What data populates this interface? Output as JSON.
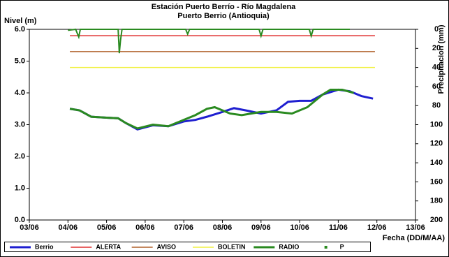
{
  "chart_data": {
    "type": "line",
    "title": "Estación Puerto Berrío - Río Magdalena",
    "subtitle": "Puerto Berrio (Antioquia)",
    "y_label": "Nivel (m)",
    "y2_label": "Precipitacion (mm)",
    "x_label": "Fecha (DD/M/AA)",
    "xlim": [
      3,
      13
    ],
    "xticks": [
      {
        "value": 3,
        "label": "03/06"
      },
      {
        "value": 4,
        "label": "04/06"
      },
      {
        "value": 5,
        "label": "05/06"
      },
      {
        "value": 6,
        "label": "06/06"
      },
      {
        "value": 7,
        "label": "07/06"
      },
      {
        "value": 8,
        "label": "08/06"
      },
      {
        "value": 9,
        "label": "09/06"
      },
      {
        "value": 10,
        "label": "10/06"
      },
      {
        "value": 11,
        "label": "11/06"
      },
      {
        "value": 12,
        "label": "12/06"
      },
      {
        "value": 13,
        "label": "13/06"
      }
    ],
    "ylim": [
      0,
      6
    ],
    "yticks": [
      {
        "value": 0,
        "label": "0.0"
      },
      {
        "value": 1,
        "label": "1.0"
      },
      {
        "value": 2,
        "label": "2.0"
      },
      {
        "value": 3,
        "label": "3.0"
      },
      {
        "value": 4,
        "label": "4.0"
      },
      {
        "value": 5,
        "label": "5.0"
      },
      {
        "value": 6,
        "label": "6.0"
      }
    ],
    "y2lim": [
      0,
      200
    ],
    "y2_inverted": true,
    "y2ticks": [
      0,
      20,
      40,
      60,
      80,
      100,
      120,
      140,
      160,
      180,
      200
    ],
    "legend": "bottom",
    "series": [
      {
        "name": "Berrio",
        "color": "#1f1fd0",
        "width": 3,
        "x": [
          4.05,
          4.3,
          4.6,
          5.0,
          5.3,
          5.5,
          5.8,
          6.2,
          6.6,
          7.0,
          7.3,
          7.6,
          8.0,
          8.3,
          8.6,
          9.0,
          9.4,
          9.7,
          10.0,
          10.3,
          10.6,
          11.0,
          11.3,
          11.6,
          11.9
        ],
        "values": [
          3.5,
          3.45,
          3.25,
          3.22,
          3.2,
          3.05,
          2.85,
          2.98,
          2.95,
          3.1,
          3.15,
          3.25,
          3.4,
          3.52,
          3.45,
          3.35,
          3.45,
          3.72,
          3.75,
          3.75,
          3.95,
          4.1,
          4.05,
          3.9,
          3.82
        ]
      },
      {
        "name": "ALERTA",
        "color": "#e03030",
        "width": 1.5,
        "x": [
          4.05,
          11.95
        ],
        "values": [
          5.8,
          5.8
        ]
      },
      {
        "name": "AVISO",
        "color": "#b0602a",
        "width": 1.5,
        "x": [
          4.05,
          11.95
        ],
        "values": [
          5.3,
          5.3
        ]
      },
      {
        "name": "BOLETIN",
        "color": "#f0f040",
        "width": 1.5,
        "x": [
          4.05,
          11.95
        ],
        "values": [
          4.8,
          4.8
        ]
      },
      {
        "name": "RADIO",
        "color": "#2a8a20",
        "width": 3,
        "x": [
          4.05,
          4.3,
          4.6,
          5.0,
          5.3,
          5.5,
          5.8,
          6.2,
          6.6,
          7.0,
          7.3,
          7.6,
          7.8,
          8.2,
          8.5,
          9.0,
          9.4,
          9.8,
          10.2,
          10.6,
          10.8,
          11.1,
          11.4
        ],
        "values": [
          3.5,
          3.45,
          3.25,
          3.22,
          3.2,
          3.05,
          2.88,
          3.0,
          2.95,
          3.15,
          3.3,
          3.5,
          3.55,
          3.35,
          3.3,
          3.4,
          3.4,
          3.35,
          3.55,
          3.95,
          4.1,
          4.1,
          4.0
        ]
      },
      {
        "name": "P",
        "color": "#2a8a20",
        "width": 2,
        "axis": "y2",
        "marker": "square",
        "x": [
          4.0,
          4.2,
          4.28,
          4.32,
          4.4,
          5.3,
          5.33,
          5.36,
          5.4,
          7.05,
          7.1,
          7.15,
          8.95,
          9.0,
          9.05,
          10.25,
          10.3,
          10.35,
          11.3
        ],
        "values": [
          1,
          0,
          8,
          0,
          0,
          0,
          25,
          12,
          0,
          0,
          5,
          0,
          0,
          7,
          0,
          0,
          7,
          0,
          0
        ]
      }
    ]
  }
}
